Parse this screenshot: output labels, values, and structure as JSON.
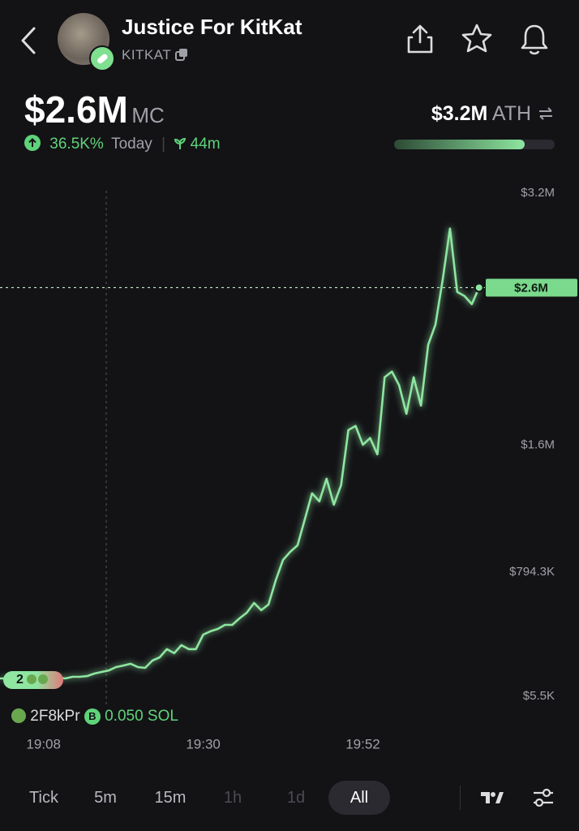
{
  "header": {
    "title": "Justice For KitKat",
    "ticker": "KITKAT",
    "market_cap": "$2.6M",
    "market_cap_unit": "MC",
    "change": "36.5K%",
    "change_period": "Today",
    "age": "44m",
    "ath": "$3.2M",
    "ath_label": "ATH"
  },
  "chart_data": {
    "type": "line",
    "categories": [
      null,
      null,
      null,
      null,
      null,
      null,
      "19:08",
      null,
      null,
      null,
      null,
      null,
      null,
      null,
      null,
      null,
      null,
      null,
      null,
      null,
      null,
      null,
      null,
      null,
      null,
      null,
      null,
      null,
      "19:30",
      null,
      null,
      null,
      null,
      null,
      null,
      null,
      null,
      null,
      null,
      null,
      null,
      null,
      null,
      null,
      null,
      null,
      null,
      null,
      null,
      null,
      "19:52",
      null,
      null,
      null,
      null,
      null,
      null,
      null,
      null,
      null,
      null,
      null,
      null,
      null,
      null,
      null,
      null
    ],
    "series": [
      {
        "color": "#8ee6a0",
        "values": [
          119000,
          119000,
          119000,
          119000,
          119000,
          124000,
          124000,
          119000,
          124000,
          119000,
          129000,
          129000,
          134000,
          150000,
          160000,
          170000,
          191000,
          201000,
          212000,
          191000,
          186000,
          232000,
          253000,
          305000,
          279000,
          330000,
          305000,
          305000,
          397000,
          418000,
          433000,
          459000,
          459000,
          500000,
          536000,
          598000,
          552000,
          588000,
          743000,
          871000,
          923000,
          964000,
          1129000,
          1294000,
          1243000,
          1387000,
          1222000,
          1346000,
          1696000,
          1722000,
          1603000,
          1645000,
          1542000,
          2031000,
          2067000,
          1980000,
          1799000,
          2031000,
          1851000,
          2237000,
          2366000,
          2650000,
          2975000,
          2573000,
          2547000,
          2495000,
          2600000
        ]
      }
    ],
    "ylim": [
      5500,
      3200000
    ],
    "yticks": [
      {
        "value": 5500,
        "label": "$5.5K"
      },
      {
        "value": 794300,
        "label": "$794.3K"
      },
      {
        "value": 1600000,
        "label": "$1.6M"
      },
      {
        "value": 3200000,
        "label": "$3.2M"
      }
    ],
    "current": {
      "value": 2600000,
      "label": "$2.6M"
    },
    "trade": {
      "count": "2",
      "wallet": "2F8kPr",
      "side": "B",
      "amount": "0.050 SOL"
    }
  },
  "timeframes": [
    "Tick",
    "5m",
    "15m",
    "1h",
    "1d",
    "All"
  ]
}
